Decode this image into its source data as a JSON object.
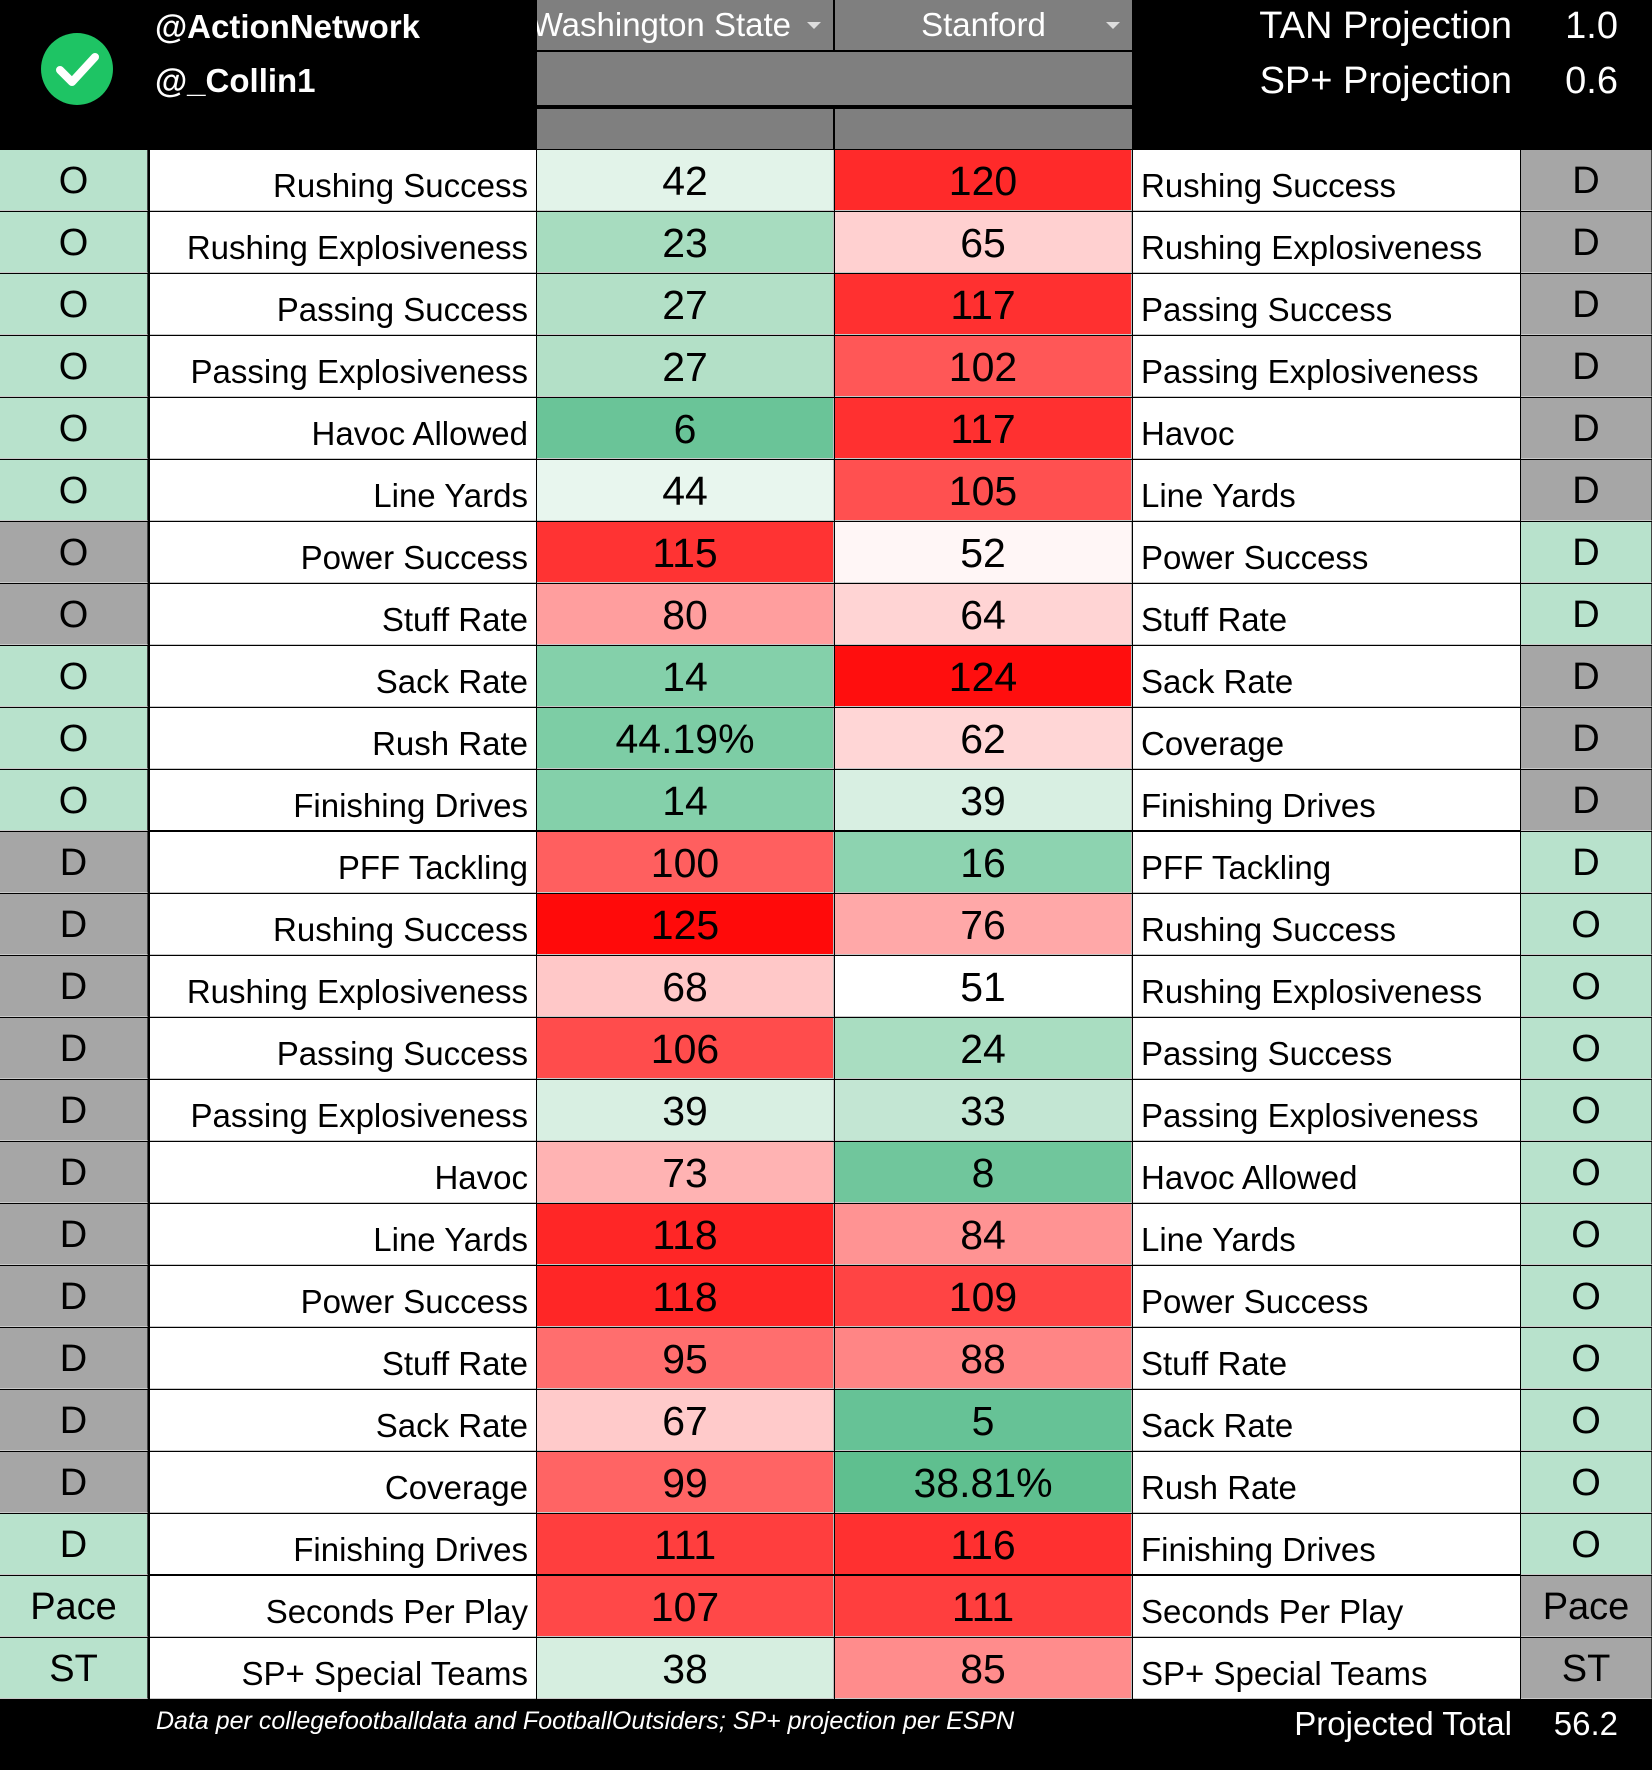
{
  "header": {
    "handle1": "@ActionNetwork",
    "handle2": "@_Collin1",
    "team_left": "Washington State",
    "team_right": "Stanford",
    "tan_label": "TAN Projection",
    "tan_value": "1.0",
    "sp_label": "SP+ Projection",
    "sp_value": "0.6"
  },
  "colors": {
    "green_light": "#b8e2cc",
    "gray_side": "#a6a6a6",
    "header_gray": "#7f7f7f",
    "check_green": "#1ec464"
  },
  "rows": [
    {
      "sideL": "O",
      "labelL": "Rushing Success",
      "valL": "42",
      "valR": "120",
      "labelR": "Rushing Success",
      "sideR": "D",
      "colL": "#e2f3e9",
      "colR": "#ff2a2a",
      "sideLcol": "#b8e2cc",
      "sideRcol": "#a6a6a6"
    },
    {
      "sideL": "O",
      "labelL": "Rushing Explosiveness",
      "valL": "23",
      "valR": "65",
      "labelR": "Rushing Explosiveness",
      "sideR": "D",
      "colL": "#a7dcbf",
      "colR": "#ffd0d0",
      "sideLcol": "#b8e2cc",
      "sideRcol": "#a6a6a6"
    },
    {
      "sideL": "O",
      "labelL": "Passing Success",
      "valL": "27",
      "valR": "117",
      "labelR": "Passing Success",
      "sideR": "D",
      "colL": "#b3e0c7",
      "colR": "#ff3030",
      "sideLcol": "#b8e2cc",
      "sideRcol": "#a6a6a6"
    },
    {
      "sideL": "O",
      "labelL": "Passing Explosiveness",
      "valL": "27",
      "valR": "102",
      "labelR": "Passing Explosiveness",
      "sideR": "D",
      "colL": "#b3e0c7",
      "colR": "#ff5757",
      "sideLcol": "#b8e2cc",
      "sideRcol": "#a6a6a6"
    },
    {
      "sideL": "O",
      "labelL": "Havoc Allowed",
      "valL": "6",
      "valR": "117",
      "labelR": "Havoc",
      "sideR": "D",
      "colL": "#6ac498",
      "colR": "#ff3030",
      "sideLcol": "#b8e2cc",
      "sideRcol": "#a6a6a6"
    },
    {
      "sideL": "O",
      "labelL": "Line Yards",
      "valL": "44",
      "valR": "105",
      "labelR": "Line Yards",
      "sideR": "D",
      "colL": "#e8f6ee",
      "colR": "#ff5050",
      "sideLcol": "#b8e2cc",
      "sideRcol": "#a6a6a6"
    },
    {
      "sideL": "O",
      "labelL": "Power Success",
      "valL": "115",
      "valR": "52",
      "labelR": "Power Success",
      "sideR": "D",
      "colL": "#ff3333",
      "colR": "#fff6f6",
      "sideLcol": "#a6a6a6",
      "sideRcol": "#b8e2cc"
    },
    {
      "sideL": "O",
      "labelL": "Stuff Rate",
      "valL": "80",
      "valR": "64",
      "labelR": "Stuff Rate",
      "sideR": "D",
      "colL": "#ff9e9e",
      "colR": "#ffd4d4",
      "sideLcol": "#a6a6a6",
      "sideRcol": "#b8e2cc"
    },
    {
      "sideL": "O",
      "labelL": "Sack Rate",
      "valL": "14",
      "valR": "124",
      "labelR": "Sack Rate",
      "sideR": "D",
      "colL": "#84d0aa",
      "colR": "#ff0e0e",
      "sideLcol": "#b8e2cc",
      "sideRcol": "#a6a6a6"
    },
    {
      "sideL": "O",
      "labelL": "Rush Rate",
      "valL": "44.19%",
      "valR": "62",
      "labelR": "Coverage",
      "sideR": "D",
      "colL": "#7dcda5",
      "colR": "#ffd6d6",
      "sideLcol": "#b8e2cc",
      "sideRcol": "#a6a6a6"
    },
    {
      "sideL": "O",
      "labelL": "Finishing Drives",
      "valL": "14",
      "valR": "39",
      "labelR": "Finishing Drives",
      "sideR": "D",
      "colL": "#84d0aa",
      "colR": "#d8efe2",
      "sideLcol": "#b8e2cc",
      "sideRcol": "#a6a6a6"
    },
    {
      "sideL": "D",
      "labelL": "PFF Tackling",
      "valL": "100",
      "valR": "16",
      "labelR": "PFF Tackling",
      "sideR": "D",
      "colL": "#ff5f5f",
      "colR": "#8dd3b0",
      "sideLcol": "#a6a6a6",
      "sideRcol": "#b8e2cc"
    },
    {
      "sideL": "D",
      "labelL": "Rushing Success",
      "valL": "125",
      "valR": "76",
      "labelR": "Rushing Success",
      "sideR": "O",
      "colL": "#ff0a0a",
      "colR": "#ffa8a8",
      "sideLcol": "#a6a6a6",
      "sideRcol": "#b8e2cc"
    },
    {
      "sideL": "D",
      "labelL": "Rushing Explosiveness",
      "valL": "68",
      "valR": "51",
      "labelR": "Rushing Explosiveness",
      "sideR": "O",
      "colL": "#ffc8c8",
      "colR": "#ffffff",
      "sideLcol": "#a6a6a6",
      "sideRcol": "#b8e2cc"
    },
    {
      "sideL": "D",
      "labelL": "Passing Success",
      "valL": "106",
      "valR": "24",
      "labelR": "Passing Success",
      "sideR": "O",
      "colL": "#ff4c4c",
      "colR": "#a9ddc1",
      "sideLcol": "#a6a6a6",
      "sideRcol": "#b8e2cc"
    },
    {
      "sideL": "D",
      "labelL": "Passing Explosiveness",
      "valL": "39",
      "valR": "33",
      "labelR": "Passing Explosiveness",
      "sideR": "O",
      "colL": "#d8efe2",
      "colR": "#c3e6d3",
      "sideLcol": "#a6a6a6",
      "sideRcol": "#b8e2cc"
    },
    {
      "sideL": "D",
      "labelL": "Havoc",
      "valL": "73",
      "valR": "8",
      "labelR": "Havoc Allowed",
      "sideR": "O",
      "colL": "#ffb3b3",
      "colR": "#70c69c",
      "sideLcol": "#a6a6a6",
      "sideRcol": "#b8e2cc"
    },
    {
      "sideL": "D",
      "labelL": "Line Yards",
      "valL": "118",
      "valR": "84",
      "labelR": "Line Yards",
      "sideR": "O",
      "colL": "#ff2626",
      "colR": "#ff9393",
      "sideLcol": "#a6a6a6",
      "sideRcol": "#b8e2cc"
    },
    {
      "sideL": "D",
      "labelL": "Power Success",
      "valL": "118",
      "valR": "109",
      "labelR": "Power Success",
      "sideR": "O",
      "colL": "#ff2626",
      "colR": "#ff4444",
      "sideLcol": "#a6a6a6",
      "sideRcol": "#b8e2cc"
    },
    {
      "sideL": "D",
      "labelL": "Stuff Rate",
      "valL": "95",
      "valR": "88",
      "labelR": "Stuff Rate",
      "sideR": "O",
      "colL": "#ff6e6e",
      "colR": "#ff8585",
      "sideLcol": "#a6a6a6",
      "sideRcol": "#b8e2cc"
    },
    {
      "sideL": "D",
      "labelL": "Sack Rate",
      "valL": "67",
      "valR": "5",
      "labelR": "Sack Rate",
      "sideR": "O",
      "colL": "#ffcaca",
      "colR": "#66c296",
      "sideLcol": "#a6a6a6",
      "sideRcol": "#b8e2cc"
    },
    {
      "sideL": "D",
      "labelL": "Coverage",
      "valL": "99",
      "valR": "38.81%",
      "labelR": "Rush Rate",
      "sideR": "O",
      "colL": "#ff6464",
      "colR": "#5fbf8f",
      "sideLcol": "#a6a6a6",
      "sideRcol": "#b8e2cc"
    },
    {
      "sideL": "D",
      "labelL": "Finishing Drives",
      "valL": "111",
      "valR": "116",
      "labelR": "Finishing Drives",
      "sideR": "O",
      "colL": "#ff3e3e",
      "colR": "#ff3030",
      "sideLcol": "#b8e2cc",
      "sideRcol": "#b8e2cc"
    },
    {
      "sideL": "Pace",
      "labelL": "Seconds Per Play",
      "valL": "107",
      "valR": "111",
      "labelR": "Seconds Per Play",
      "sideR": "Pace",
      "colL": "#ff4848",
      "colR": "#ff3e3e",
      "sideLcol": "#b8e2cc",
      "sideRcol": "#a6a6a6"
    },
    {
      "sideL": "ST",
      "labelL": "SP+ Special Teams",
      "valL": "38",
      "valR": "85",
      "labelR": "SP+ Special Teams",
      "sideR": "ST",
      "colL": "#d6eee0",
      "colR": "#ff8c8c",
      "sideLcol": "#b8e2cc",
      "sideRcol": "#a6a6a6"
    }
  ],
  "footer": {
    "note": "Data per collegefootballdata and FootballOutsiders; SP+ projection per ESPN",
    "total_label": "Projected Total",
    "total_value": "56.2"
  }
}
